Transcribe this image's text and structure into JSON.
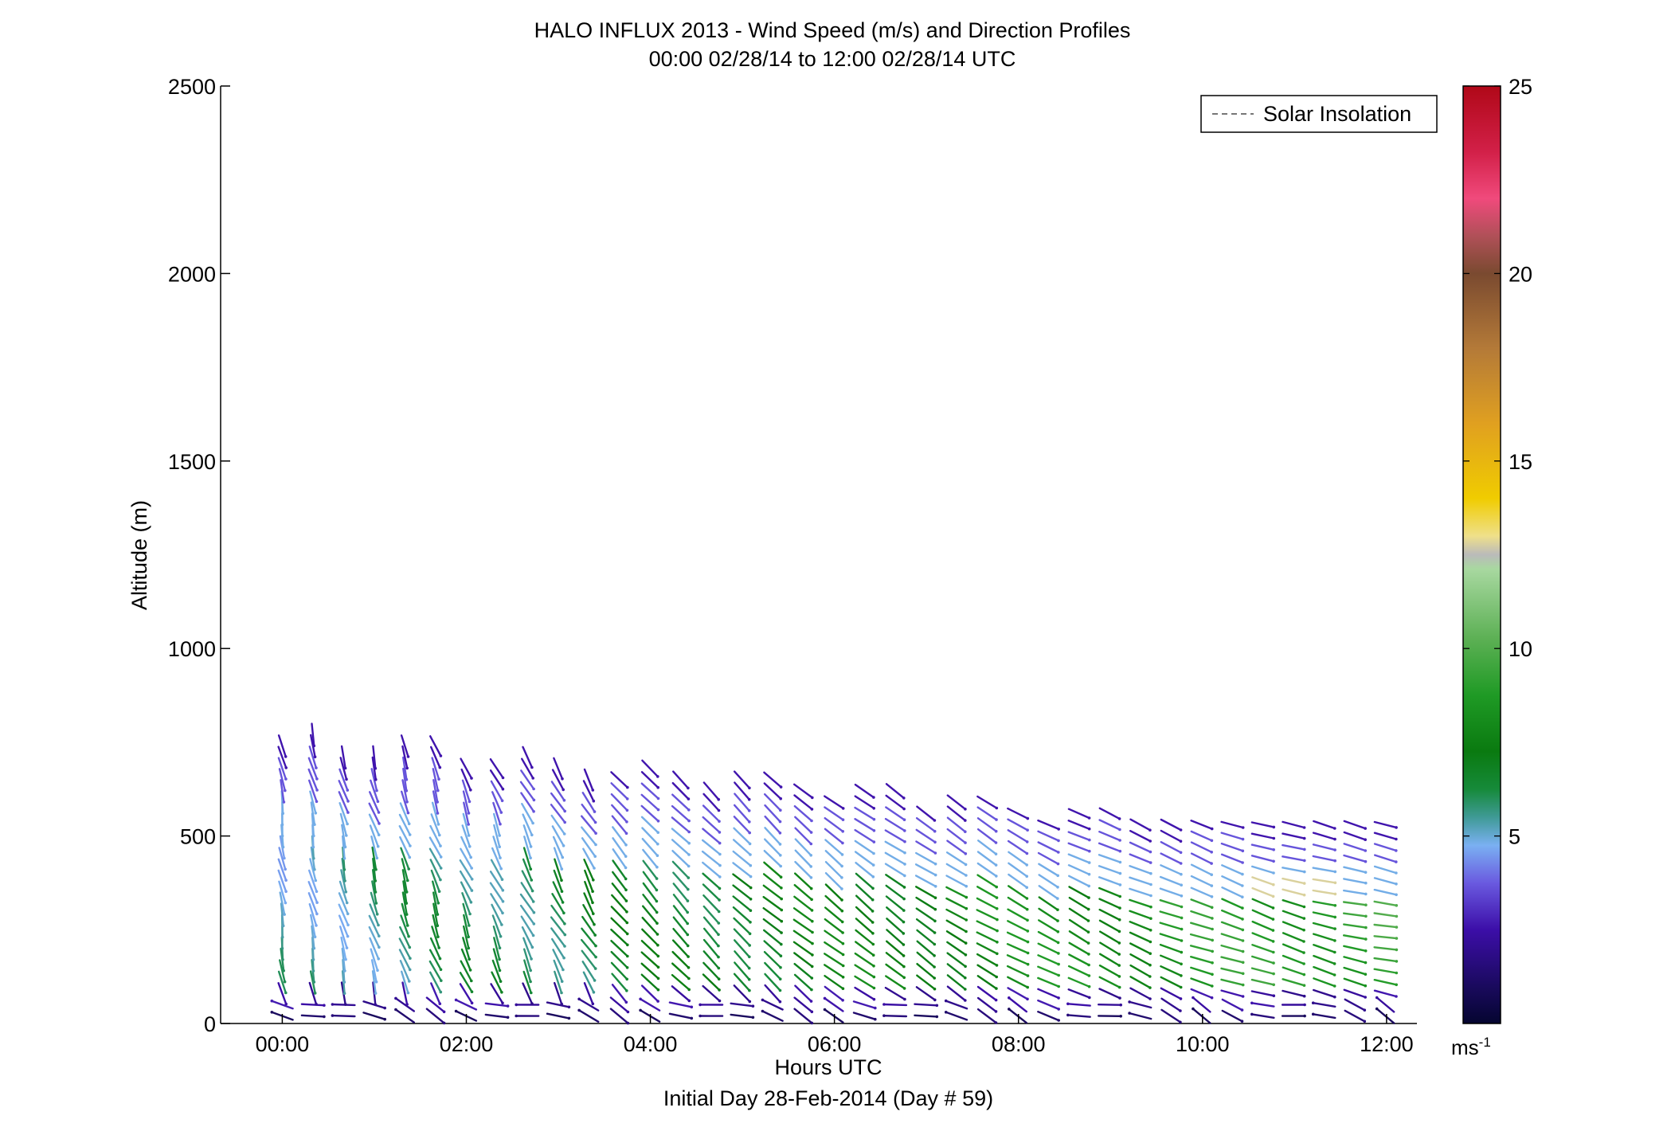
{
  "title": "HALO INFLUX 2013 - Wind Speed (m/s) and Direction Profiles",
  "subtitle": "00:00 02/28/14 to 12:00 02/28/14  UTC",
  "legend_label": "Solar Insolation",
  "footer": "Initial Day 28-Feb-2014 (Day # 59)",
  "colorbar": {
    "unit_label": "ms",
    "unit_exp": "-1"
  },
  "chart_data": {
    "type": "scatter",
    "title": "HALO INFLUX 2013 - Wind Speed (m/s) and Direction Profiles",
    "xlabel": "Hours UTC",
    "ylabel": "Altitude (m)",
    "xlim": [
      -0.67,
      12.33
    ],
    "ylim": [
      0,
      2500
    ],
    "xticks": [
      0,
      2,
      4,
      6,
      8,
      10,
      12
    ],
    "xtick_labels": [
      "00:00",
      "02:00",
      "04:00",
      "06:00",
      "08:00",
      "10:00",
      "12:00"
    ],
    "yticks": [
      0,
      500,
      1000,
      1500,
      2000,
      2500
    ],
    "ytick_labels": [
      "0",
      "500",
      "1000",
      "1500",
      "2000",
      "2500"
    ],
    "colorbar_range": [
      0,
      25
    ],
    "colorbar_ticks": [
      5,
      10,
      15,
      20,
      25
    ],
    "legend": {
      "position": "top-right",
      "entries": [
        "Solar Insolation"
      ]
    },
    "profiles": {
      "time_start_hours": 0,
      "time_step_hours": 0.333,
      "count": 37,
      "altitude_step_m": 30
    }
  }
}
